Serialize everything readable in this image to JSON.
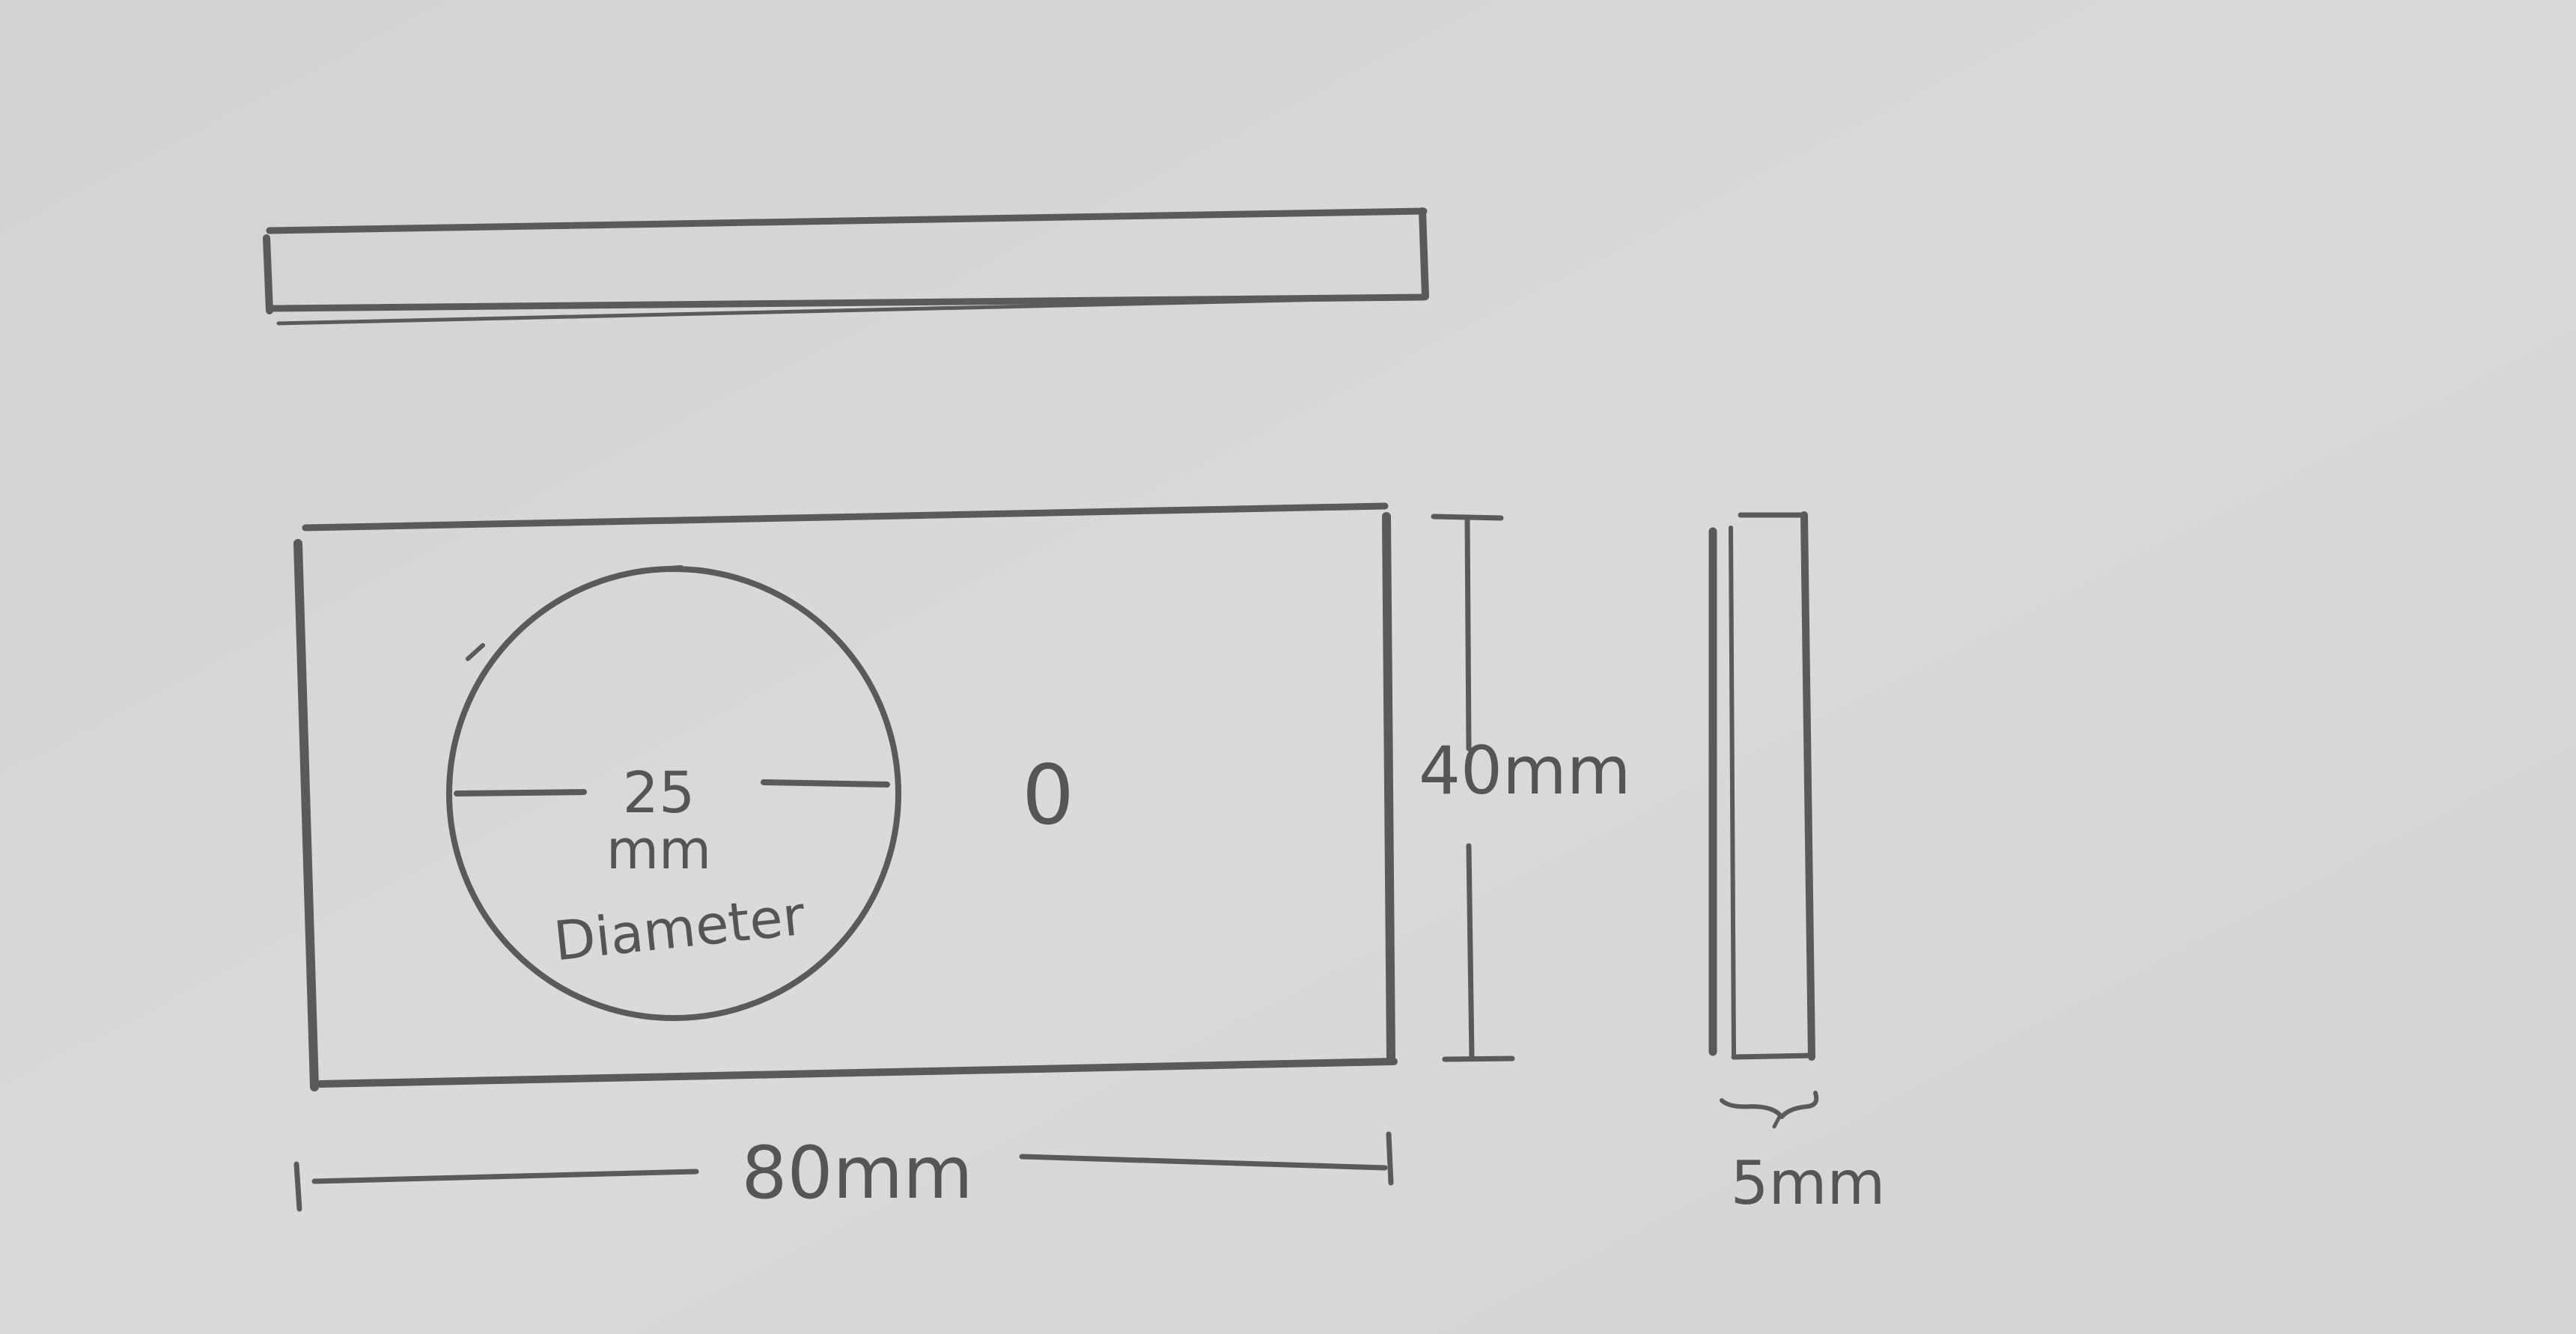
{
  "drawing": {
    "colors": {
      "paper": "#d6d6d4",
      "pencil": "#5a5a5a"
    },
    "labels": {
      "hole_diameter_value": "25",
      "hole_diameter_unit": "mm",
      "hole_diameter_word": "Diameter",
      "small_hole_mark": "0",
      "height": "40mm",
      "length": "80mm",
      "thickness": "5mm"
    }
  }
}
